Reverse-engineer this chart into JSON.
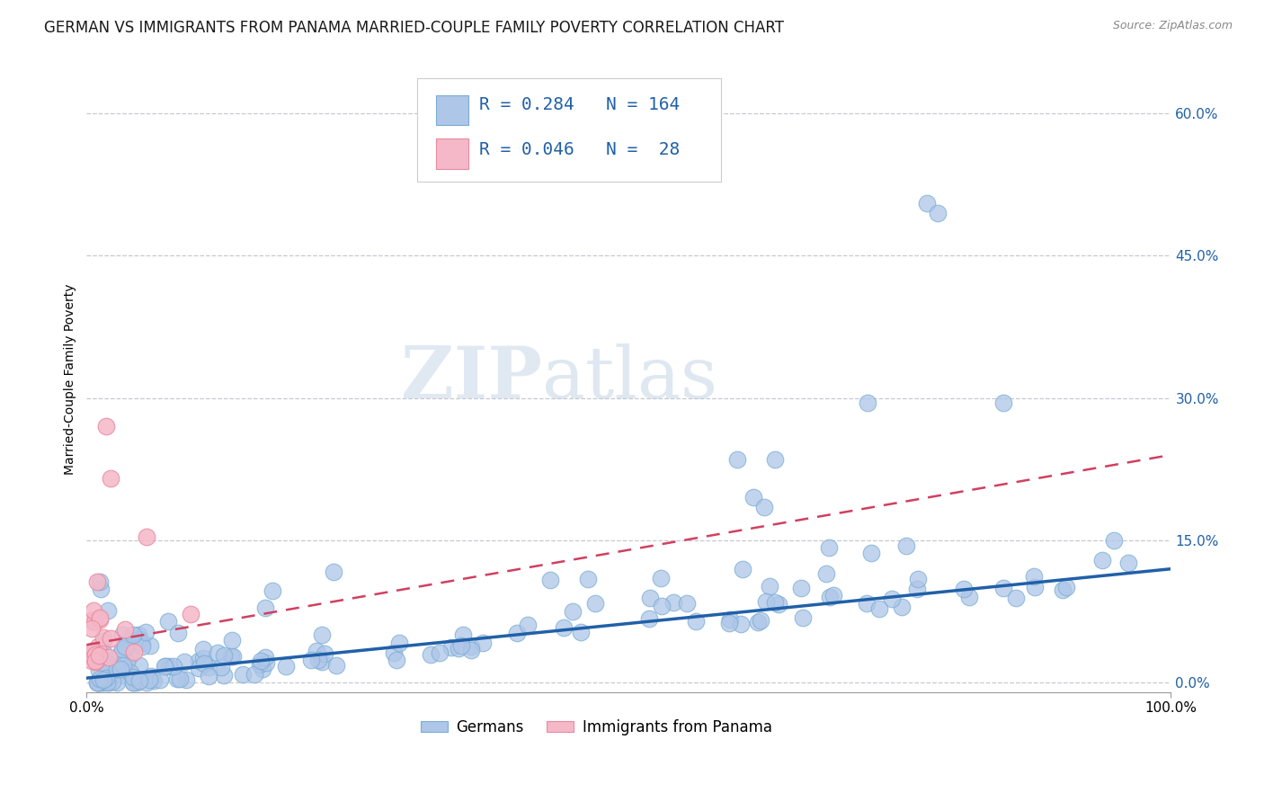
{
  "title": "GERMAN VS IMMIGRANTS FROM PANAMA MARRIED-COUPLE FAMILY POVERTY CORRELATION CHART",
  "source": "Source: ZipAtlas.com",
  "ylabel": "Married-Couple Family Poverty",
  "xlim": [
    0,
    1.0
  ],
  "ylim": [
    -0.01,
    0.65
  ],
  "ytick_labels": [
    "0.0%",
    "15.0%",
    "30.0%",
    "45.0%",
    "60.0%"
  ],
  "ytick_vals": [
    0.0,
    0.15,
    0.3,
    0.45,
    0.6
  ],
  "xtick_vals": [
    0.0,
    1.0
  ],
  "xtick_labels": [
    "0.0%",
    "100.0%"
  ],
  "german_R": "0.284",
  "german_N": "164",
  "panama_R": "0.046",
  "panama_N": "28",
  "blue_fill": "#aec6e8",
  "blue_edge": "#7aadd4",
  "blue_line_color": "#2060a8",
  "pink_fill": "#f5b8c8",
  "pink_edge": "#e88aa0",
  "pink_line_color": "#d04060",
  "legend_blue_label": "Germans",
  "legend_pink_label": "Immigrants from Panama",
  "watermark_zip": "ZIP",
  "watermark_atlas": "atlas",
  "background_color": "#ffffff",
  "grid_color": "#c8c8d0",
  "title_fontsize": 12,
  "axis_label_fontsize": 10,
  "tick_fontsize": 11,
  "legend_fontsize": 14,
  "dot_size": 180,
  "blue_line_slope": 0.115,
  "blue_line_intercept": 0.005,
  "pink_line_slope": 0.2,
  "pink_line_intercept": 0.04
}
